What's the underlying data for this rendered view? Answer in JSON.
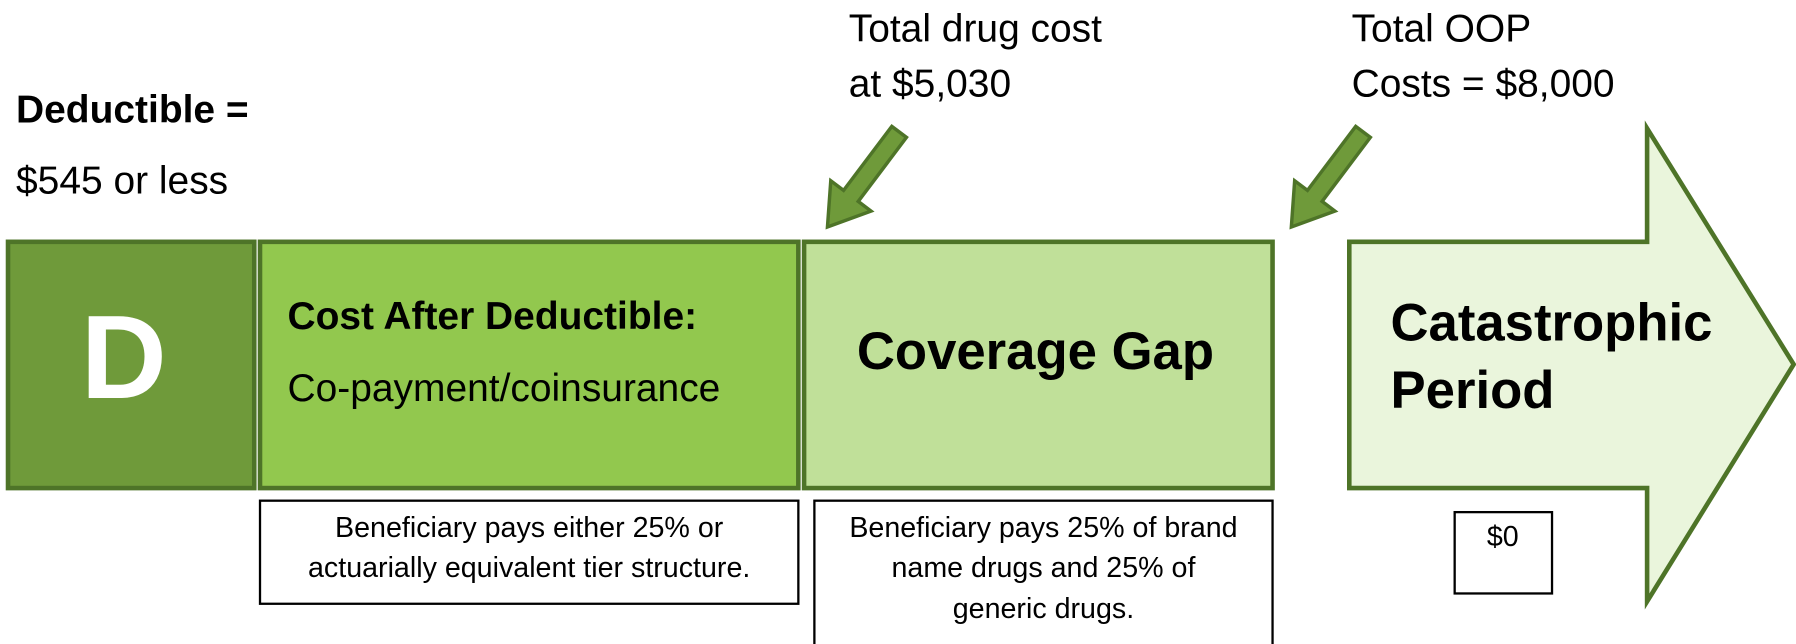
{
  "deductible": {
    "title": "Deductible =",
    "amount": "$545 or less"
  },
  "markers": [
    {
      "lines": [
        "Total drug cost",
        "at $5,030"
      ]
    },
    {
      "lines": [
        "Total OOP",
        "Costs = $8,000"
      ]
    }
  ],
  "phases": {
    "deductible_letter": "D",
    "initial": {
      "title": "Cost After Deductible:",
      "subtitle": "Co-payment/coinsurance",
      "note": [
        "Beneficiary pays either 25% or",
        "actuarially equivalent tier structure."
      ]
    },
    "gap": {
      "title": "Coverage Gap",
      "note": [
        "Beneficiary pays 25% of brand",
        "name drugs and 25% of",
        "generic drugs."
      ]
    },
    "catastrophic": {
      "title": [
        "Catastrophic",
        "Period"
      ],
      "note": "$0"
    }
  }
}
